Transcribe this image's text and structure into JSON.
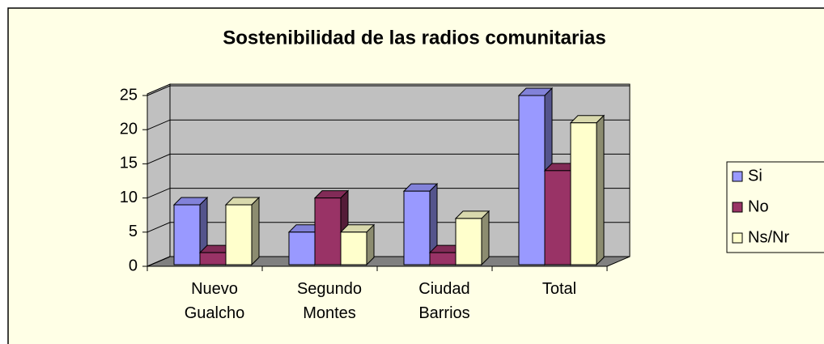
{
  "chart_data": {
    "type": "bar3d",
    "title": "Sostenibilidad de las radios comunitarias",
    "categories": [
      "Nuevo Gualcho",
      "Segundo Montes",
      "Ciudad Barrios",
      "Total"
    ],
    "series": [
      {
        "name": "Si",
        "color": "#9999ff",
        "values": [
          9,
          5,
          11,
          25
        ]
      },
      {
        "name": "No",
        "color": "#993366",
        "values": [
          2,
          10,
          2,
          14
        ]
      },
      {
        "name": "Ns/Nr",
        "color": "#ffffcc",
        "values": [
          9,
          5,
          7,
          21
        ]
      }
    ],
    "ylim": [
      0,
      25
    ],
    "yticks": [
      0,
      5,
      10,
      15,
      20,
      25
    ],
    "grid": true,
    "legend": "right"
  }
}
